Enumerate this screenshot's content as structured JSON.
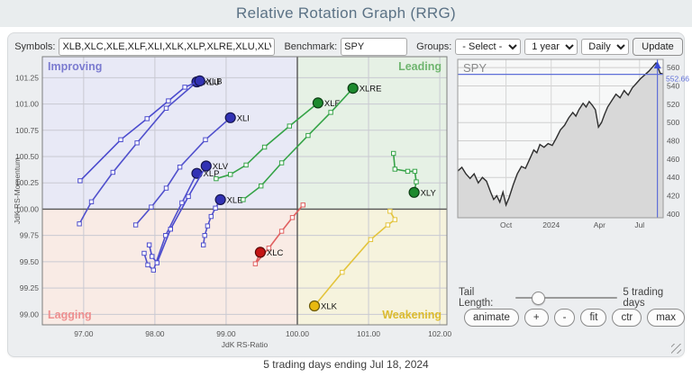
{
  "header": {
    "title": "Relative Rotation Graph (RRG)"
  },
  "toolbar": {
    "symbols_label": "Symbols:",
    "symbols_value": "XLB,XLC,XLE,XLF,XLI,XLK,XLP,XLRE,XLU,XLV,XL",
    "benchmark_label": "Benchmark:",
    "benchmark_value": "SPY",
    "groups_label": "Groups:",
    "groups_value": "- Select -",
    "period_value": "1 year",
    "frequency_value": "Daily",
    "update_label": "Update"
  },
  "controls": {
    "tail_length_label": "Tail Length:",
    "tail_length_value": "5 trading days",
    "buttons": [
      "animate",
      "+",
      "-",
      "fit",
      "ctr",
      "max"
    ]
  },
  "footer": {
    "caption": "5 trading days ending Jul 18, 2024"
  },
  "chart_data": {
    "rrg": {
      "type": "scatter",
      "xlabel": "JdK RS-Ratio",
      "ylabel": "JdK RS-Momentum",
      "xlim": [
        96.42,
        102.1
      ],
      "ylim": [
        98.9,
        101.45
      ],
      "x_ticks": [
        {
          "v": 97,
          "label": "97.00"
        },
        {
          "v": 98,
          "label": "98.00"
        },
        {
          "v": 99,
          "label": "99.00"
        },
        {
          "v": 100,
          "label": "100.00"
        },
        {
          "v": 101,
          "label": "101.00"
        },
        {
          "v": 102,
          "label": "102.00"
        }
      ],
      "y_ticks": [
        {
          "v": 99,
          "label": "99.00"
        },
        {
          "v": 99.25,
          "label": "99.25"
        },
        {
          "v": 99.5,
          "label": "99.50"
        },
        {
          "v": 99.75,
          "label": "99.75"
        },
        {
          "v": 100,
          "label": "100.00"
        },
        {
          "v": 100.25,
          "label": "100.25"
        },
        {
          "v": 100.5,
          "label": "100.50"
        },
        {
          "v": 100.75,
          "label": "100.75"
        },
        {
          "v": 101,
          "label": "101.00"
        },
        {
          "v": 101.25,
          "label": "101.25"
        }
      ],
      "quadrants": [
        {
          "name": "Improving",
          "color": "#e8e9f6",
          "label_color": "#7b7bd0"
        },
        {
          "name": "Leading",
          "color": "#e6f1e5",
          "label_color": "#6fb56f"
        },
        {
          "name": "Lagging",
          "color": "#f9ebe5",
          "label_color": "#ee8f8f"
        },
        {
          "name": "Weakening",
          "color": "#f6f3dd",
          "label_color": "#dcbb2e"
        }
      ],
      "series": [
        {
          "name": "XLU",
          "color": "#5050cc",
          "head_color": "#3232b4",
          "outline": "#15154d",
          "points": [
            [
              96.94,
              99.86
            ],
            [
              97.11,
              100.07
            ],
            [
              97.41,
              100.35
            ],
            [
              97.75,
              100.63
            ],
            [
              98.16,
              100.96
            ],
            [
              98.59,
              101.21
            ]
          ]
        },
        {
          "name": "XLB",
          "color": "#4a4ace",
          "head_color": "#3232b4",
          "outline": "#15154d",
          "points": [
            [
              96.95,
              100.27
            ],
            [
              97.52,
              100.66
            ],
            [
              97.89,
              100.86
            ],
            [
              98.19,
              101.03
            ],
            [
              98.42,
              101.16
            ],
            [
              98.63,
              101.22
            ]
          ]
        },
        {
          "name": "XLI",
          "color": "#5050cc",
          "head_color": "#3232b4",
          "outline": "#15154d",
          "points": [
            [
              97.73,
              99.85
            ],
            [
              97.95,
              100.02
            ],
            [
              98.16,
              100.2
            ],
            [
              98.35,
              100.4
            ],
            [
              98.71,
              100.66
            ],
            [
              99.06,
              100.87
            ]
          ]
        },
        {
          "name": "XLP",
          "color": "#5050cc",
          "head_color": "#3232b4",
          "outline": "#15154d",
          "points": [
            [
              97.85,
              99.58
            ],
            [
              97.9,
              99.47
            ],
            [
              97.98,
              99.42
            ],
            [
              98.15,
              99.75
            ],
            [
              98.38,
              100.06
            ],
            [
              98.59,
              100.34
            ]
          ]
        },
        {
          "name": "XLV",
          "color": "#4a4ace",
          "head_color": "#3232b4",
          "outline": "#15154d",
          "points": [
            [
              97.92,
              99.66
            ],
            [
              97.96,
              99.55
            ],
            [
              98.03,
              99.49
            ],
            [
              98.22,
              99.81
            ],
            [
              98.47,
              100.12
            ],
            [
              98.72,
              100.41
            ]
          ]
        },
        {
          "name": "XLE",
          "color": "#5050cc",
          "head_color": "#3232b4",
          "outline": "#15154d",
          "points": [
            [
              98.68,
              99.66
            ],
            [
              98.7,
              99.75
            ],
            [
              98.74,
              99.84
            ],
            [
              98.79,
              99.93
            ],
            [
              98.85,
              100.01
            ],
            [
              98.92,
              100.09
            ]
          ]
        },
        {
          "name": "XLF",
          "color": "#35a347",
          "head_color": "#1d8a2e",
          "outline": "#0c3d14",
          "points": [
            [
              98.86,
              100.29
            ],
            [
              99.06,
              100.33
            ],
            [
              99.28,
              100.42
            ],
            [
              99.54,
              100.59
            ],
            [
              99.89,
              100.79
            ],
            [
              100.29,
              101.01
            ]
          ]
        },
        {
          "name": "XLRE",
          "color": "#35a347",
          "head_color": "#1d8a2e",
          "outline": "#0c3d14",
          "points": [
            [
              99.24,
              100.09
            ],
            [
              99.49,
              100.22
            ],
            [
              99.78,
              100.44
            ],
            [
              100.15,
              100.7
            ],
            [
              100.47,
              100.92
            ],
            [
              100.78,
              101.15
            ]
          ]
        },
        {
          "name": "XLY",
          "color": "#35a347",
          "head_color": "#1d8a2e",
          "outline": "#0c3d14",
          "points": [
            [
              101.35,
              100.53
            ],
            [
              101.37,
              100.38
            ],
            [
              101.55,
              100.36
            ],
            [
              101.65,
              100.36
            ],
            [
              101.67,
              100.26
            ],
            [
              101.64,
              100.16
            ]
          ]
        },
        {
          "name": "XLC",
          "color": "#e06060",
          "head_color": "#c41414",
          "outline": "#5a0808",
          "points": [
            [
              100.08,
              100.04
            ],
            [
              99.93,
              99.92
            ],
            [
              99.78,
              99.79
            ],
            [
              99.6,
              99.63
            ],
            [
              99.41,
              99.48
            ],
            [
              99.48,
              99.59
            ]
          ]
        },
        {
          "name": "XLK",
          "color": "#e3c43c",
          "head_color": "#e9b90e",
          "outline": "#6b5a07",
          "points": [
            [
              101.3,
              99.98
            ],
            [
              101.37,
              99.9
            ],
            [
              101.27,
              99.85
            ],
            [
              101.03,
              99.71
            ],
            [
              100.63,
              99.4
            ],
            [
              100.24,
              99.08
            ]
          ]
        }
      ]
    },
    "spy": {
      "type": "area",
      "title": "SPY",
      "last_price": "552.66",
      "last_price_value": 552.66,
      "crosshair_f": 0.972,
      "crosshair_color": "#5f6fd8",
      "ylim": [
        396,
        569
      ],
      "y_ticks": [
        {
          "v": 400,
          "label": "400"
        },
        {
          "v": 420,
          "label": "420"
        },
        {
          "v": 440,
          "label": "440"
        },
        {
          "v": 460,
          "label": "460"
        },
        {
          "v": 480,
          "label": "480"
        },
        {
          "v": 500,
          "label": "500"
        },
        {
          "v": 520,
          "label": "520"
        },
        {
          "v": 540,
          "label": "540"
        },
        {
          "v": 560,
          "label": "560"
        }
      ],
      "x_labels": [
        {
          "label": "Oct",
          "f": 0.235
        },
        {
          "label": "2024",
          "f": 0.455
        },
        {
          "label": "Apr",
          "f": 0.69
        },
        {
          "label": "Jul",
          "f": 0.885
        }
      ],
      "points": [
        [
          0,
          447
        ],
        [
          0.02,
          451
        ],
        [
          0.04,
          444
        ],
        [
          0.06,
          439
        ],
        [
          0.08,
          444
        ],
        [
          0.1,
          434
        ],
        [
          0.12,
          440
        ],
        [
          0.14,
          436
        ],
        [
          0.16,
          424
        ],
        [
          0.175,
          416
        ],
        [
          0.19,
          420
        ],
        [
          0.205,
          413
        ],
        [
          0.22,
          424
        ],
        [
          0.235,
          410
        ],
        [
          0.25,
          418
        ],
        [
          0.27,
          432
        ],
        [
          0.29,
          444
        ],
        [
          0.31,
          452
        ],
        [
          0.33,
          450
        ],
        [
          0.35,
          460
        ],
        [
          0.37,
          470
        ],
        [
          0.385,
          467
        ],
        [
          0.4,
          476
        ],
        [
          0.42,
          473
        ],
        [
          0.44,
          477
        ],
        [
          0.46,
          475
        ],
        [
          0.48,
          483
        ],
        [
          0.5,
          492
        ],
        [
          0.52,
          497
        ],
        [
          0.54,
          505
        ],
        [
          0.56,
          511
        ],
        [
          0.575,
          507
        ],
        [
          0.59,
          514
        ],
        [
          0.61,
          521
        ],
        [
          0.625,
          517
        ],
        [
          0.64,
          523
        ],
        [
          0.655,
          519
        ],
        [
          0.67,
          514
        ],
        [
          0.685,
          495
        ],
        [
          0.7,
          500
        ],
        [
          0.715,
          509
        ],
        [
          0.73,
          517
        ],
        [
          0.75,
          524
        ],
        [
          0.77,
          531
        ],
        [
          0.79,
          527
        ],
        [
          0.81,
          535
        ],
        [
          0.83,
          530
        ],
        [
          0.85,
          538
        ],
        [
          0.87,
          543
        ],
        [
          0.89,
          548
        ],
        [
          0.91,
          552
        ],
        [
          0.93,
          556
        ],
        [
          0.95,
          561
        ],
        [
          0.965,
          565
        ],
        [
          0.975,
          560
        ],
        [
          0.985,
          554
        ],
        [
          1.0,
          553
        ]
      ]
    }
  }
}
